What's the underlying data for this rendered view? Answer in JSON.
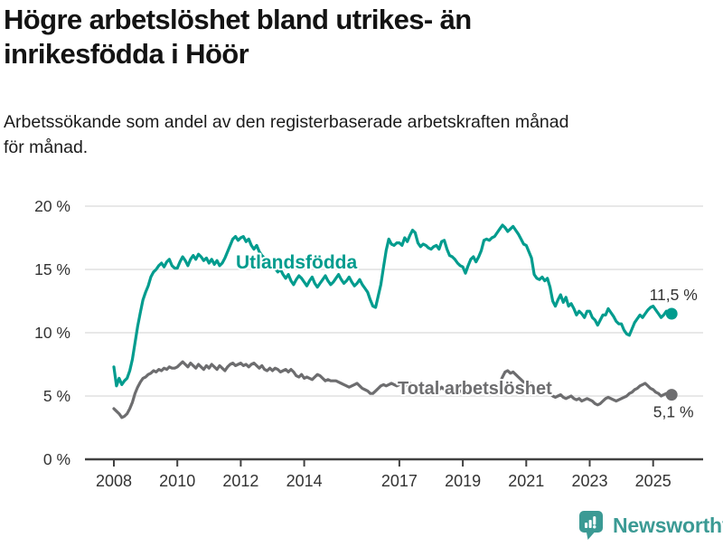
{
  "title_lines": [
    "Högre arbetslöshet bland utrikes- än",
    "inrikesfödda i Höör"
  ],
  "subtitle_lines": [
    "Arbetssökande som andel av den registerbaserade arbetskraften månad",
    "för månad."
  ],
  "branding": {
    "name": "Newsworthy",
    "icon": "newsworthy-chart-bubble-icon",
    "color": "#3b9a94"
  },
  "colors": {
    "background": "#ffffff",
    "title": "#131313",
    "grid": "#d9d9d9",
    "axis": "#414141",
    "tick_label": "#333333",
    "end_label": "#333333",
    "utlandsfodda": "#009c8e",
    "total": "#6d6d6f"
  },
  "chart_data": {
    "type": "line",
    "x_unit": "month",
    "x_start": "2008-01",
    "x_end": "2025-08",
    "xlim": [
      2007.1,
      2026.5
    ],
    "ylim": [
      0,
      20
    ],
    "grid": true,
    "legend_position": "inline-labels",
    "x_tick_years": [
      2008,
      2010,
      2012,
      2014,
      2017,
      2019,
      2021,
      2023,
      2025
    ],
    "x_tick_labels": [
      "2008",
      "2010",
      "2012",
      "2014",
      "2017",
      "2019",
      "2021",
      "2023",
      "2025"
    ],
    "y_tick_values": [
      0,
      5,
      10,
      15,
      20
    ],
    "y_tick_labels": [
      "0 %",
      "5 %",
      "10 %",
      "15 %",
      "20 %"
    ],
    "series": [
      {
        "name": "Utlandsfödda",
        "color": "#009c8e",
        "end_label": "11,5 %",
        "end_value": 11.5,
        "values": [
          7.3,
          5.8,
          6.4,
          5.9,
          6.2,
          6.4,
          7.0,
          7.9,
          9.2,
          10.5,
          11.6,
          12.6,
          13.2,
          13.7,
          14.4,
          14.8,
          15.0,
          15.3,
          15.5,
          15.2,
          15.6,
          15.8,
          15.3,
          15.1,
          15.1,
          15.6,
          16.0,
          15.7,
          15.3,
          15.8,
          16.1,
          15.8,
          16.2,
          16.0,
          15.7,
          15.9,
          15.5,
          15.8,
          15.4,
          15.7,
          15.3,
          15.5,
          15.9,
          16.4,
          16.9,
          17.4,
          17.6,
          17.3,
          17.5,
          17.6,
          17.2,
          17.4,
          16.9,
          16.6,
          16.9,
          16.4,
          16.1,
          15.9,
          15.6,
          15.8,
          15.4,
          15.1,
          14.8,
          15.0,
          14.6,
          14.3,
          14.6,
          14.1,
          13.8,
          14.2,
          14.5,
          14.3,
          14.0,
          13.7,
          14.1,
          14.4,
          13.9,
          13.6,
          13.9,
          14.2,
          14.5,
          14.1,
          13.8,
          14.0,
          14.3,
          14.6,
          14.2,
          13.9,
          14.1,
          14.4,
          14.0,
          13.7,
          13.9,
          14.2,
          13.8,
          13.5,
          13.2,
          12.6,
          12.1,
          12.0,
          12.9,
          13.8,
          15.2,
          16.5,
          17.4,
          17.0,
          16.9,
          17.1,
          17.1,
          16.9,
          17.5,
          17.2,
          17.7,
          18.1,
          17.9,
          17.1,
          16.8,
          17.0,
          16.9,
          16.7,
          16.6,
          16.8,
          16.9,
          16.6,
          17.2,
          17.3,
          16.6,
          16.1,
          16.0,
          15.8,
          15.5,
          15.3,
          15.2,
          14.7,
          15.3,
          15.8,
          16.0,
          15.6,
          16.0,
          16.5,
          17.3,
          17.4,
          17.3,
          17.5,
          17.6,
          17.9,
          18.2,
          18.5,
          18.3,
          18.0,
          18.2,
          18.4,
          18.1,
          17.8,
          17.4,
          17.0,
          16.9,
          16.4,
          15.9,
          14.6,
          14.3,
          14.2,
          14.4,
          14.1,
          14.3,
          13.6,
          12.5,
          12.1,
          12.6,
          13.0,
          12.4,
          12.8,
          12.1,
          12.3,
          11.9,
          11.4,
          11.7,
          11.5,
          11.2,
          11.7,
          11.7,
          11.2,
          11.0,
          10.6,
          11.0,
          11.4,
          11.4,
          11.9,
          11.6,
          11.3,
          10.9,
          10.7,
          10.7,
          10.2,
          9.9,
          9.8,
          10.3,
          10.8,
          11.1,
          11.4,
          11.2,
          11.5,
          11.8,
          12.0,
          12.1,
          11.8,
          11.5,
          11.2,
          11.4,
          11.7,
          11.4,
          11.5
        ]
      },
      {
        "name": "Total arbetslöshet",
        "color": "#6d6d6f",
        "end_label": "5,1 %",
        "end_value": 5.1,
        "values": [
          4.0,
          3.8,
          3.6,
          3.3,
          3.4,
          3.6,
          4.0,
          4.5,
          5.2,
          5.7,
          6.1,
          6.4,
          6.5,
          6.7,
          6.8,
          7.0,
          6.9,
          7.1,
          7.0,
          7.2,
          7.1,
          7.3,
          7.2,
          7.2,
          7.3,
          7.5,
          7.7,
          7.5,
          7.3,
          7.6,
          7.4,
          7.2,
          7.5,
          7.3,
          7.1,
          7.4,
          7.2,
          7.5,
          7.3,
          7.1,
          7.4,
          7.2,
          7.0,
          7.3,
          7.5,
          7.6,
          7.4,
          7.5,
          7.6,
          7.4,
          7.5,
          7.3,
          7.5,
          7.6,
          7.4,
          7.2,
          7.4,
          7.1,
          7.0,
          7.2,
          7.0,
          7.2,
          7.1,
          6.9,
          7.0,
          7.1,
          6.9,
          7.1,
          6.9,
          6.6,
          6.5,
          6.7,
          6.4,
          6.5,
          6.4,
          6.3,
          6.5,
          6.7,
          6.6,
          6.4,
          6.2,
          6.3,
          6.2,
          6.2,
          6.2,
          6.1,
          6.0,
          5.9,
          5.8,
          5.7,
          5.8,
          5.9,
          6.0,
          5.8,
          5.6,
          5.5,
          5.4,
          5.2,
          5.2,
          5.4,
          5.6,
          5.8,
          5.9,
          5.8,
          5.9,
          6.0,
          5.9,
          5.8,
          5.9,
          6.0,
          5.8,
          5.9,
          6.0,
          5.8,
          5.7,
          5.9,
          5.8,
          5.6,
          5.8,
          5.7,
          5.6,
          5.8,
          5.6,
          5.5,
          5.7,
          5.5,
          5.4,
          5.6,
          5.4,
          5.3,
          5.5,
          5.4,
          5.3,
          5.5,
          5.4,
          5.2,
          5.4,
          5.5,
          5.3,
          5.5,
          5.6,
          5.4,
          5.6,
          5.7,
          5.8,
          5.7,
          6.0,
          6.5,
          6.9,
          7.0,
          6.8,
          6.9,
          6.7,
          6.5,
          6.3,
          6.1,
          6.0,
          6.1,
          5.9,
          5.7,
          5.8,
          5.6,
          5.4,
          5.5,
          5.3,
          5.2,
          5.0,
          4.9,
          5.0,
          5.1,
          4.9,
          4.8,
          4.9,
          5.0,
          4.8,
          4.7,
          4.8,
          4.6,
          4.7,
          4.8,
          4.7,
          4.6,
          4.4,
          4.3,
          4.4,
          4.6,
          4.8,
          4.9,
          4.8,
          4.7,
          4.6,
          4.7,
          4.8,
          4.9,
          5.0,
          5.2,
          5.3,
          5.5,
          5.6,
          5.8,
          5.9,
          6.0,
          5.8,
          5.6,
          5.5,
          5.3,
          5.2,
          5.0,
          5.1,
          5.2,
          5.0,
          5.1
        ]
      }
    ]
  }
}
